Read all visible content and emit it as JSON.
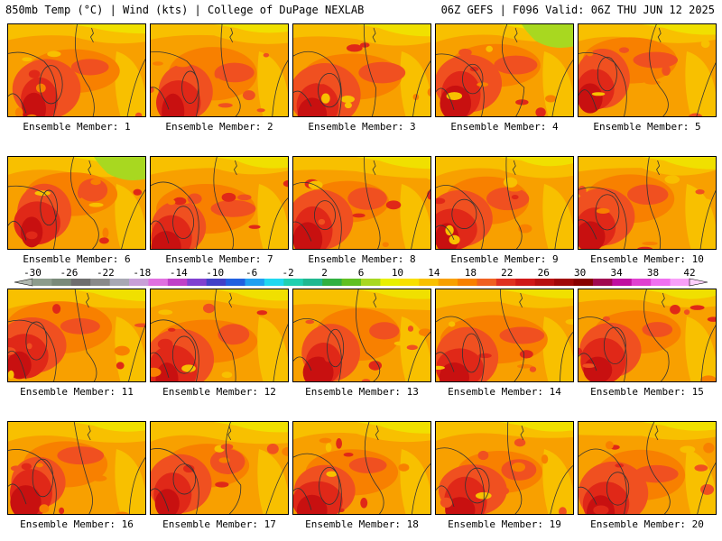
{
  "header": {
    "left": "850mb Temp (°C) | Wind (kts) | College of DuPage NEXLAB",
    "right": "06Z GEFS | F096 Valid: 06Z THU JUN 12 2025"
  },
  "panels": [
    {
      "label": "Ensemble Member: 1"
    },
    {
      "label": "Ensemble Member: 2"
    },
    {
      "label": "Ensemble Member: 3"
    },
    {
      "label": "Ensemble Member: 4"
    },
    {
      "label": "Ensemble Member: 5"
    },
    {
      "label": "Ensemble Member: 6"
    },
    {
      "label": "Ensemble Member: 7"
    },
    {
      "label": "Ensemble Member: 8"
    },
    {
      "label": "Ensemble Member: 9"
    },
    {
      "label": "Ensemble Member: 10"
    },
    {
      "label": "Ensemble Member: 11"
    },
    {
      "label": "Ensemble Member: 12"
    },
    {
      "label": "Ensemble Member: 13"
    },
    {
      "label": "Ensemble Member: 14"
    },
    {
      "label": "Ensemble Member: 15"
    },
    {
      "label": "Ensemble Member: 16"
    },
    {
      "label": "Ensemble Member: 17"
    },
    {
      "label": "Ensemble Member: 18"
    },
    {
      "label": "Ensemble Member: 19"
    },
    {
      "label": "Ensemble Member: 20"
    }
  ],
  "colorbar": {
    "ticks": [
      "-30",
      "-26",
      "-22",
      "-18",
      "-14",
      "-10",
      "-6",
      "-2",
      "2",
      "6",
      "10",
      "14",
      "18",
      "22",
      "26",
      "30",
      "34",
      "38",
      "42"
    ],
    "colors": [
      "#8c9c8c",
      "#7a8a7a",
      "#6e6e6e",
      "#8a8a8a",
      "#a8a8b4",
      "#c8a0d8",
      "#e070e0",
      "#c040c8",
      "#8040d0",
      "#4040c8",
      "#2060e0",
      "#20a0f0",
      "#20d8f0",
      "#20d0b0",
      "#20b890",
      "#30b040",
      "#60c020",
      "#a8d820",
      "#e8f000",
      "#f8e000",
      "#f8c000",
      "#f8a000",
      "#f88000",
      "#f06020",
      "#e03020",
      "#d01818",
      "#b81010",
      "#a00808",
      "#880000",
      "#a00850",
      "#c010a0",
      "#e040d0",
      "#f070f0",
      "#f8a0f8"
    ]
  }
}
